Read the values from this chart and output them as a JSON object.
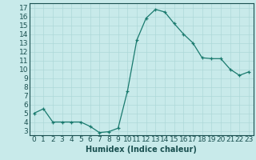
{
  "x": [
    0,
    1,
    2,
    3,
    4,
    5,
    6,
    7,
    8,
    9,
    10,
    11,
    12,
    13,
    14,
    15,
    16,
    17,
    18,
    19,
    20,
    21,
    22,
    23
  ],
  "y": [
    5.0,
    5.5,
    4.0,
    4.0,
    4.0,
    4.0,
    3.5,
    2.8,
    2.9,
    3.3,
    7.5,
    13.3,
    15.8,
    16.8,
    16.5,
    15.2,
    14.0,
    13.0,
    11.3,
    11.2,
    11.2,
    10.0,
    9.3,
    9.7
  ],
  "xlabel": "Humidex (Indice chaleur)",
  "xlim": [
    -0.5,
    23.5
  ],
  "ylim": [
    2.5,
    17.5
  ],
  "yticks": [
    3,
    4,
    5,
    6,
    7,
    8,
    9,
    10,
    11,
    12,
    13,
    14,
    15,
    16,
    17
  ],
  "xticks": [
    0,
    1,
    2,
    3,
    4,
    5,
    6,
    7,
    8,
    9,
    10,
    11,
    12,
    13,
    14,
    15,
    16,
    17,
    18,
    19,
    20,
    21,
    22,
    23
  ],
  "line_color": "#1a7a6e",
  "bg_color": "#c8eaea",
  "grid_color": "#add8d8",
  "xlabel_color": "#1a5050",
  "tick_color": "#1a5050",
  "font_size": 6.5
}
